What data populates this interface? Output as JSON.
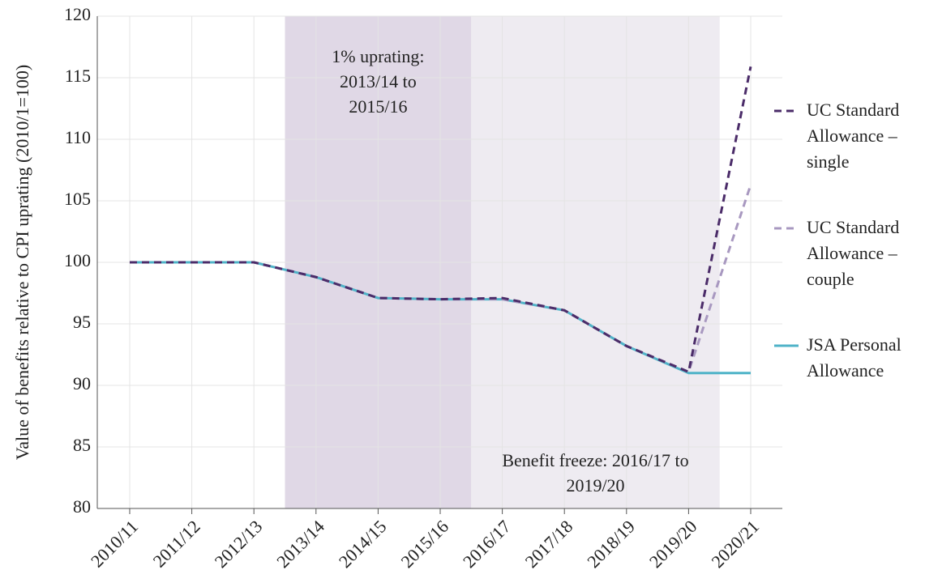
{
  "chart_data": {
    "type": "line",
    "y_label": "Value of benefits relative to CPI uprating (2010/1=100)",
    "categories": [
      "2010/11",
      "2011/12",
      "2012/13",
      "2013/14",
      "2014/15",
      "2015/16",
      "2016/17",
      "2017/18",
      "2018/19",
      "2019/20",
      "2020/21"
    ],
    "series": [
      {
        "name": "UC Standard Allowance – single",
        "color": "#4b2c69",
        "linestyle": "dashed",
        "values": [
          100,
          100,
          100,
          98.8,
          97.1,
          97.0,
          97.1,
          96.1,
          93.2,
          91.1,
          115.9
        ]
      },
      {
        "name": "UC Standard Allowance – couple",
        "color": "#a898c0",
        "linestyle": "dashed",
        "values": [
          100,
          100,
          100,
          98.8,
          97.1,
          97.0,
          97.0,
          96.1,
          93.2,
          91.1,
          106.3
        ]
      },
      {
        "name": "JSA Personal Allowance",
        "color": "#4fb3c8",
        "linestyle": "solid",
        "values": [
          100,
          100,
          100,
          98.8,
          97.1,
          97.0,
          97.0,
          96.1,
          93.2,
          91.0,
          91.0
        ]
      }
    ],
    "shaded_regions": [
      {
        "start": "2013/14",
        "end": "2015/16",
        "color": "#e0d8e6",
        "label": "1% uprating: 2013/14 to 2015/16"
      },
      {
        "start": "2016/17",
        "end": "2019/20",
        "color": "#eeebf1",
        "label": "Benefit freeze: 2016/17 to 2019/20"
      }
    ],
    "ylim": [
      80,
      120
    ],
    "yticks": [
      80,
      85,
      90,
      95,
      100,
      105,
      110,
      115,
      120
    ],
    "grid": true,
    "legend": "right"
  }
}
